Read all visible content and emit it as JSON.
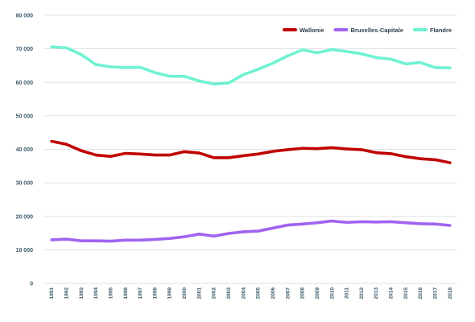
{
  "chart_data": {
    "type": "line",
    "title": "",
    "xlabel": "",
    "ylabel": "",
    "ylim": [
      0,
      80000
    ],
    "yticks": [
      "0",
      "10 000",
      "20 000",
      "30 000",
      "40 000",
      "50 000",
      "60 000",
      "70 000",
      "80 000"
    ],
    "grid": "horizontal",
    "legend_position": "top-right",
    "x": [
      "1991",
      "1992",
      "1993",
      "1994",
      "1995",
      "1996",
      "1997",
      "1998",
      "1999",
      "2000",
      "2001",
      "2002",
      "2003",
      "2004",
      "2005",
      "2006",
      "2007",
      "2008",
      "2009",
      "2010",
      "2011",
      "2012",
      "2013",
      "2014",
      "2015",
      "2016",
      "2017",
      "2018"
    ],
    "series": [
      {
        "name": "Wallonie",
        "color": "#c00000",
        "values": [
          42400,
          41500,
          39600,
          38300,
          37900,
          38800,
          38600,
          38300,
          38300,
          39300,
          38900,
          37500,
          37500,
          38100,
          38600,
          39400,
          39900,
          40300,
          40200,
          40500,
          40100,
          39900,
          39000,
          38700,
          37800,
          37200,
          36900,
          36000
        ]
      },
      {
        "name": "Bruxelles-Capitale",
        "color": "#a064f0",
        "values": [
          13000,
          13200,
          12700,
          12700,
          12600,
          12900,
          12900,
          13100,
          13400,
          13900,
          14700,
          14100,
          14900,
          15400,
          15600,
          16500,
          17400,
          17700,
          18100,
          18600,
          18200,
          18400,
          18300,
          18400,
          18100,
          17800,
          17700,
          17300
        ]
      },
      {
        "name": "Flandre",
        "color": "#6ff2d0",
        "values": [
          70600,
          70300,
          68300,
          65300,
          64600,
          64400,
          64500,
          62900,
          61800,
          61800,
          60400,
          59500,
          59800,
          62300,
          63900,
          65700,
          67900,
          69700,
          68800,
          69800,
          69200,
          68500,
          67400,
          66900,
          65500,
          65900,
          64400,
          64300
        ]
      }
    ]
  }
}
